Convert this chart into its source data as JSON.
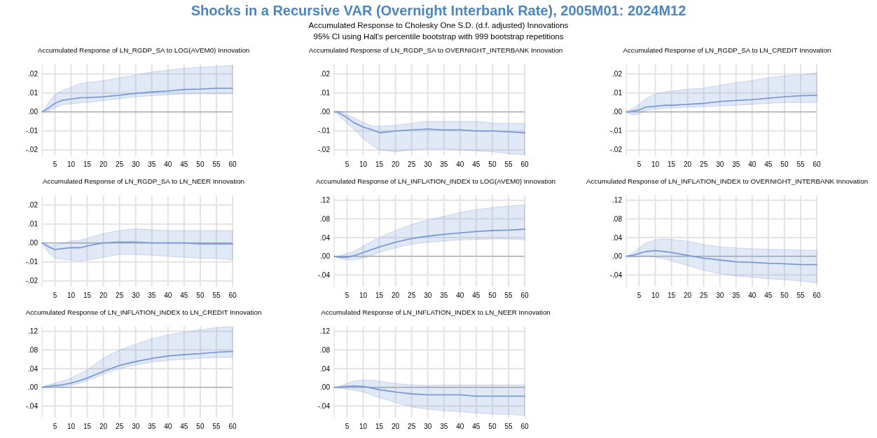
{
  "chart_data": [
    {
      "type": "other",
      "title": "Shocks in a Recursive VAR (Overnight Interbank Rate), 2005M01: 2024M12",
      "subtitle": "Accumulated Response to Cholesky One S.D. (d.f. adjusted) Innovations",
      "annotations": [
        "95% CI using Hall's percentile bootstrap with 999 bootstrap repetitions"
      ]
    },
    {
      "type": "line",
      "title": "Accumulated Response of LN_RGDP_SA to LOG(AVEM0) Innovation",
      "x": [
        1,
        2,
        3,
        5,
        7,
        10,
        13,
        15,
        20,
        25,
        30,
        35,
        40,
        45,
        50,
        55,
        60
      ],
      "xlim": [
        1,
        60
      ],
      "xticks": [
        5,
        10,
        15,
        20,
        25,
        30,
        35,
        40,
        45,
        50,
        55,
        60
      ],
      "ylim": [
        -0.023,
        0.025
      ],
      "yticks": [
        {
          "value": -0.02,
          "label": "-.02"
        },
        {
          "value": -0.01,
          "label": "-.01"
        },
        {
          "value": 0,
          "label": ".00"
        },
        {
          "value": 0.01,
          "label": ".01"
        },
        {
          "value": 0.02,
          "label": ".02"
        }
      ],
      "grid": true,
      "ref_lines": [
        {
          "axis": "y",
          "value": 0,
          "color": "#a6a6a6"
        }
      ],
      "series": [
        {
          "color": "#7b9bd8",
          "values": [
            0,
            0.001,
            0.002,
            0.0045,
            0.006,
            0.0068,
            0.0075,
            0.0075,
            0.008,
            0.0088,
            0.0098,
            0.0105,
            0.011,
            0.0118,
            0.012,
            0.0125,
            0.0125
          ],
          "lower": [
            0,
            0,
            0.0005,
            0.002,
            0.0038,
            0.0042,
            0.0048,
            0.005,
            0.006,
            0.007,
            0.008,
            0.0085,
            0.009,
            0.0095,
            0.0095,
            0.0095,
            0.0095
          ],
          "upper": [
            0,
            0.002,
            0.005,
            0.009,
            0.011,
            0.013,
            0.015,
            0.0155,
            0.0165,
            0.018,
            0.0195,
            0.021,
            0.022,
            0.023,
            0.0235,
            0.024,
            0.0245
          ]
        }
      ]
    },
    {
      "type": "line",
      "title": "Accumulated Response of LN_RGDP_SA to OVERNIGHT_INTERBANK Innovation",
      "x": [
        1,
        2,
        3,
        5,
        7,
        10,
        13,
        15,
        20,
        25,
        30,
        35,
        40,
        45,
        50,
        55,
        60
      ],
      "xlim": [
        1,
        60
      ],
      "xticks": [
        5,
        10,
        15,
        20,
        25,
        30,
        35,
        40,
        45,
        50,
        55,
        60
      ],
      "ylim": [
        -0.023,
        0.025
      ],
      "yticks": [
        {
          "value": -0.02,
          "label": "-.02"
        },
        {
          "value": -0.01,
          "label": "-.01"
        },
        {
          "value": 0,
          "label": ".00"
        },
        {
          "value": 0.01,
          "label": ".01"
        },
        {
          "value": 0.02,
          "label": ".02"
        }
      ],
      "grid": true,
      "ref_lines": [
        {
          "axis": "y",
          "value": 0,
          "color": "#a6a6a6"
        }
      ],
      "series": [
        {
          "color": "#7b9bd8",
          "values": [
            0,
            0,
            -0.001,
            -0.003,
            -0.0055,
            -0.008,
            -0.0095,
            -0.011,
            -0.01,
            -0.0095,
            -0.009,
            -0.0095,
            -0.0095,
            -0.01,
            -0.01,
            -0.0105,
            -0.011
          ],
          "lower": [
            0,
            -0.001,
            -0.003,
            -0.006,
            -0.009,
            -0.014,
            -0.018,
            -0.02,
            -0.021,
            -0.02,
            -0.0195,
            -0.0195,
            -0.02,
            -0.0205,
            -0.021,
            -0.022,
            -0.0225
          ],
          "upper": [
            0,
            0.0005,
            0.0005,
            -0.0015,
            -0.003,
            -0.0055,
            -0.0075,
            -0.0075,
            -0.007,
            -0.006,
            -0.005,
            -0.005,
            -0.005,
            -0.005,
            -0.006,
            -0.006,
            -0.006
          ]
        }
      ]
    },
    {
      "type": "line",
      "title": "Accumulated Response of LN_RGDP_SA to LN_CREDIT Innovation",
      "x": [
        1,
        2,
        3,
        5,
        7,
        10,
        13,
        15,
        20,
        25,
        30,
        35,
        40,
        45,
        50,
        55,
        60
      ],
      "xlim": [
        1,
        60
      ],
      "xticks": [
        5,
        10,
        15,
        20,
        25,
        30,
        35,
        40,
        45,
        50,
        55,
        60
      ],
      "ylim": [
        -0.023,
        0.025
      ],
      "yticks": [
        {
          "value": -0.02,
          "label": "-.02"
        },
        {
          "value": -0.01,
          "label": "-.01"
        },
        {
          "value": 0,
          "label": ".00"
        },
        {
          "value": 0.01,
          "label": ".01"
        },
        {
          "value": 0.02,
          "label": ".02"
        }
      ],
      "grid": true,
      "ref_lines": [
        {
          "axis": "y",
          "value": 0,
          "color": "#a6a6a6"
        }
      ],
      "series": [
        {
          "color": "#7b9bd8",
          "values": [
            0,
            0,
            0.0005,
            0.001,
            0.0025,
            0.003,
            0.0035,
            0.0035,
            0.004,
            0.0045,
            0.0055,
            0.006,
            0.0065,
            0.0072,
            0.008,
            0.0085,
            0.0088
          ],
          "lower": [
            0,
            -0.001,
            -0.0015,
            -0.001,
            0.0008,
            0.0015,
            0.002,
            0.002,
            0.0025,
            0.0028,
            0.0032,
            0.0035,
            0.004,
            0.0045,
            0.005,
            0.005,
            0.005
          ],
          "upper": [
            0,
            0.001,
            0.002,
            0.004,
            0.007,
            0.0095,
            0.0105,
            0.011,
            0.012,
            0.0125,
            0.014,
            0.0155,
            0.0165,
            0.018,
            0.019,
            0.0195,
            0.0205
          ]
        }
      ]
    },
    {
      "type": "line",
      "title": "Accumulated Response of LN_RGDP_SA to LN_NEER Innovation",
      "x": [
        1,
        2,
        3,
        5,
        7,
        10,
        13,
        15,
        20,
        25,
        30,
        35,
        40,
        45,
        50,
        55,
        60
      ],
      "xlim": [
        1,
        60
      ],
      "xticks": [
        5,
        10,
        15,
        20,
        25,
        30,
        35,
        40,
        45,
        50,
        55,
        60
      ],
      "ylim": [
        -0.023,
        0.025
      ],
      "yticks": [
        {
          "value": -0.02,
          "label": "-.02"
        },
        {
          "value": -0.01,
          "label": "-.01"
        },
        {
          "value": 0,
          "label": ".00"
        },
        {
          "value": 0.01,
          "label": ".01"
        },
        {
          "value": 0.02,
          "label": ".02"
        }
      ],
      "grid": true,
      "ref_lines": [
        {
          "axis": "y",
          "value": 0,
          "color": "#a6a6a6"
        }
      ],
      "series": [
        {
          "color": "#7b9bd8",
          "values": [
            0,
            -0.001,
            -0.002,
            -0.0035,
            -0.003,
            -0.0025,
            -0.0025,
            -0.0015,
            0,
            0.0005,
            0.0005,
            0,
            0,
            0,
            -0.0005,
            -0.0005,
            -0.0005
          ],
          "lower": [
            0,
            -0.003,
            -0.005,
            -0.008,
            -0.0085,
            -0.009,
            -0.0095,
            -0.009,
            -0.0075,
            -0.006,
            -0.006,
            -0.0065,
            -0.007,
            -0.0075,
            -0.008,
            -0.008,
            -0.009
          ],
          "upper": [
            0,
            0,
            -0.001,
            -0.001,
            -0.0005,
            0.001,
            0.0015,
            0.0025,
            0.005,
            0.0065,
            0.0075,
            0.007,
            0.0065,
            0.0065,
            0.0065,
            0.0065,
            0.0065
          ]
        }
      ]
    },
    {
      "type": "line",
      "title": "Accumulated Response of LN_INFLATION_INDEX to LOG(AVEM0) Innovation",
      "x": [
        1,
        2,
        3,
        5,
        7,
        10,
        13,
        15,
        20,
        25,
        30,
        35,
        40,
        45,
        50,
        55,
        60
      ],
      "xlim": [
        1,
        60
      ],
      "xticks": [
        5,
        10,
        15,
        20,
        25,
        30,
        35,
        40,
        45,
        50,
        55,
        60
      ],
      "ylim": [
        -0.065,
        0.13
      ],
      "yticks": [
        {
          "value": -0.04,
          "label": "-.04"
        },
        {
          "value": 0,
          "label": ".00"
        },
        {
          "value": 0.04,
          "label": ".04"
        },
        {
          "value": 0.08,
          "label": ".08"
        },
        {
          "value": 0.12,
          "label": ".12"
        }
      ],
      "grid": true,
      "ref_lines": [
        {
          "axis": "y",
          "value": 0,
          "color": "#a6a6a6"
        }
      ],
      "series": [
        {
          "color": "#7b9bd8",
          "values": [
            0,
            -0.001,
            -0.002,
            -0.002,
            0.001,
            0.008,
            0.015,
            0.02,
            0.03,
            0.038,
            0.043,
            0.047,
            0.05,
            0.053,
            0.055,
            0.056,
            0.058
          ],
          "lower": [
            0,
            -0.003,
            -0.005,
            -0.008,
            -0.008,
            -0.004,
            0.003,
            0.008,
            0.018,
            0.026,
            0.03,
            0.033,
            0.035,
            0.036,
            0.037,
            0.037,
            0.035
          ],
          "upper": [
            0,
            0,
            0.002,
            0.006,
            0.01,
            0.022,
            0.033,
            0.04,
            0.055,
            0.068,
            0.078,
            0.085,
            0.094,
            0.1,
            0.104,
            0.107,
            0.11
          ]
        }
      ]
    },
    {
      "type": "line",
      "title": "Accumulated Response of LN_INFLATION_INDEX to OVERNIGHT_INTERBANK Innovation",
      "x": [
        1,
        2,
        3,
        5,
        7,
        10,
        13,
        15,
        20,
        25,
        30,
        35,
        40,
        45,
        50,
        55,
        60
      ],
      "xlim": [
        1,
        60
      ],
      "xticks": [
        5,
        10,
        15,
        20,
        25,
        30,
        35,
        40,
        45,
        50,
        55,
        60
      ],
      "ylim": [
        -0.065,
        0.13
      ],
      "yticks": [
        {
          "value": -0.04,
          "label": "-.04"
        },
        {
          "value": 0,
          "label": ".00"
        },
        {
          "value": 0.04,
          "label": ".04"
        },
        {
          "value": 0.08,
          "label": ".08"
        },
        {
          "value": 0.12,
          "label": ".12"
        }
      ],
      "grid": true,
      "ref_lines": [
        {
          "axis": "y",
          "value": 0,
          "color": "#a6a6a6"
        }
      ],
      "series": [
        {
          "color": "#7b9bd8",
          "values": [
            0,
            0.001,
            0.002,
            0.006,
            0.01,
            0.012,
            0.01,
            0.008,
            0.002,
            -0.004,
            -0.008,
            -0.012,
            -0.013,
            -0.015,
            -0.016,
            -0.018,
            -0.018
          ],
          "lower": [
            0,
            -0.001,
            -0.002,
            -0.001,
            0,
            -0.002,
            -0.006,
            -0.01,
            -0.02,
            -0.03,
            -0.037,
            -0.042,
            -0.045,
            -0.048,
            -0.05,
            -0.053,
            -0.057
          ],
          "upper": [
            0,
            0.003,
            0.008,
            0.018,
            0.028,
            0.035,
            0.037,
            0.036,
            0.032,
            0.025,
            0.02,
            0.018,
            0.016,
            0.015,
            0.014,
            0.013,
            0.013
          ]
        }
      ]
    },
    {
      "type": "line",
      "title": "Accumulated Response of LN_INFLATION_INDEX to LN_CREDIT Innovation",
      "x": [
        1,
        2,
        3,
        5,
        7,
        10,
        13,
        15,
        20,
        25,
        30,
        35,
        40,
        45,
        50,
        55,
        60
      ],
      "xlim": [
        1,
        60
      ],
      "xticks": [
        5,
        10,
        15,
        20,
        25,
        30,
        35,
        40,
        45,
        50,
        55,
        60
      ],
      "ylim": [
        -0.065,
        0.13
      ],
      "yticks": [
        {
          "value": -0.04,
          "label": "-.04"
        },
        {
          "value": 0,
          "label": ".00"
        },
        {
          "value": 0.04,
          "label": ".04"
        },
        {
          "value": 0.08,
          "label": ".08"
        },
        {
          "value": 0.12,
          "label": ".12"
        }
      ],
      "grid": true,
      "ref_lines": [
        {
          "axis": "y",
          "value": 0,
          "color": "#a6a6a6"
        }
      ],
      "series": [
        {
          "color": "#7b9bd8",
          "values": [
            0,
            0.001,
            0.002,
            0.004,
            0.005,
            0.009,
            0.015,
            0.02,
            0.034,
            0.047,
            0.055,
            0.062,
            0.067,
            0.07,
            0.072,
            0.075,
            0.077
          ],
          "lower": [
            0,
            0,
            0,
            0.001,
            0.001,
            0.004,
            0.01,
            0.014,
            0.028,
            0.04,
            0.048,
            0.054,
            0.058,
            0.06,
            0.062,
            0.064,
            0.064
          ],
          "upper": [
            0,
            0.003,
            0.005,
            0.009,
            0.013,
            0.02,
            0.03,
            0.038,
            0.062,
            0.08,
            0.092,
            0.104,
            0.112,
            0.118,
            0.123,
            0.128,
            0.13
          ]
        }
      ]
    },
    {
      "type": "line",
      "title": "Accumulated Response of LN_INFLATION_INDEX to LN_NEER Innovation",
      "x": [
        1,
        2,
        3,
        5,
        7,
        10,
        13,
        15,
        20,
        25,
        30,
        35,
        40,
        45,
        50,
        55,
        60
      ],
      "xlim": [
        1,
        60
      ],
      "xticks": [
        5,
        10,
        15,
        20,
        25,
        30,
        35,
        40,
        45,
        50,
        55,
        60
      ],
      "ylim": [
        -0.065,
        0.13
      ],
      "yticks": [
        {
          "value": -0.04,
          "label": "-.04"
        },
        {
          "value": 0,
          "label": ".00"
        },
        {
          "value": 0.04,
          "label": ".04"
        },
        {
          "value": 0.08,
          "label": ".08"
        },
        {
          "value": 0.12,
          "label": ".12"
        }
      ],
      "grid": true,
      "ref_lines": [
        {
          "axis": "y",
          "value": 0,
          "color": "#a6a6a6"
        }
      ],
      "series": [
        {
          "color": "#7b9bd8",
          "values": [
            0,
            0,
            0.001,
            0.002,
            0.003,
            0.002,
            -0.002,
            -0.005,
            -0.01,
            -0.014,
            -0.016,
            -0.016,
            -0.016,
            -0.019,
            -0.019,
            -0.019,
            -0.019
          ],
          "lower": [
            0,
            -0.001,
            -0.002,
            -0.004,
            -0.006,
            -0.01,
            -0.017,
            -0.022,
            -0.032,
            -0.042,
            -0.047,
            -0.05,
            -0.052,
            -0.055,
            -0.057,
            -0.058,
            -0.06
          ],
          "upper": [
            0,
            0.001,
            0.003,
            0.008,
            0.013,
            0.016,
            0.015,
            0.013,
            0.008,
            0.005,
            0.004,
            0.005,
            0.005,
            0.005,
            0.005,
            0.005,
            0.005
          ]
        }
      ]
    }
  ]
}
